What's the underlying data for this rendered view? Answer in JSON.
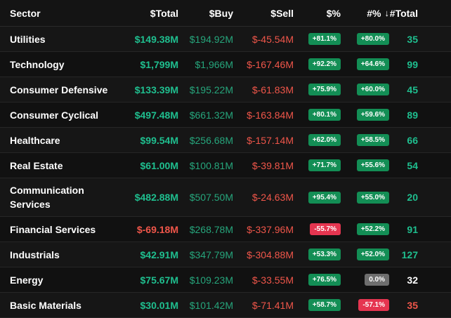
{
  "header": {
    "sector": "Sector",
    "total": "$Total",
    "buy": "$Buy",
    "sell": "$Sell",
    "pct": "$%",
    "npct": "#%",
    "npct_sort_icon": "arrow-down-icon",
    "count": "#Total"
  },
  "colors": {
    "positive_text": "#1fbf8f",
    "negative_text": "#f0564a",
    "positive_badge": "#138e55",
    "negative_badge": "#e53550",
    "neutral_badge": "#6e6e6e"
  },
  "rows": [
    {
      "sector": "Utilities",
      "total": "$149.38M",
      "buy": "$194.92M",
      "sell": "$-45.54M",
      "pct": "+81.1%",
      "npct": "+80.0%",
      "count": "35"
    },
    {
      "sector": "Technology",
      "total": "$1,799M",
      "buy": "$1,966M",
      "sell": "$-167.46M",
      "pct": "+92.2%",
      "npct": "+64.6%",
      "count": "99"
    },
    {
      "sector": "Consumer Defensive",
      "total": "$133.39M",
      "buy": "$195.22M",
      "sell": "$-61.83M",
      "pct": "+75.9%",
      "npct": "+60.0%",
      "count": "45"
    },
    {
      "sector": "Consumer Cyclical",
      "total": "$497.48M",
      "buy": "$661.32M",
      "sell": "$-163.84M",
      "pct": "+80.1%",
      "npct": "+59.6%",
      "count": "89"
    },
    {
      "sector": "Healthcare",
      "total": "$99.54M",
      "buy": "$256.68M",
      "sell": "$-157.14M",
      "pct": "+62.0%",
      "npct": "+58.5%",
      "count": "66"
    },
    {
      "sector": "Real Estate",
      "total": "$61.00M",
      "buy": "$100.81M",
      "sell": "$-39.81M",
      "pct": "+71.7%",
      "npct": "+55.6%",
      "count": "54"
    },
    {
      "sector": "Communication Services",
      "total": "$482.88M",
      "buy": "$507.50M",
      "sell": "$-24.63M",
      "pct": "+95.4%",
      "npct": "+55.0%",
      "count": "20"
    },
    {
      "sector": "Financial Services",
      "total": "$-69.18M",
      "buy": "$268.78M",
      "sell": "$-337.96M",
      "pct": "-55.7%",
      "npct": "+52.2%",
      "count": "91"
    },
    {
      "sector": "Industrials",
      "total": "$42.91M",
      "buy": "$347.79M",
      "sell": "$-304.88M",
      "pct": "+53.3%",
      "npct": "+52.0%",
      "count": "127"
    },
    {
      "sector": "Energy",
      "total": "$75.67M",
      "buy": "$109.23M",
      "sell": "$-33.55M",
      "pct": "+76.5%",
      "npct": "0.0%",
      "count": "32"
    },
    {
      "sector": "Basic Materials",
      "total": "$30.01M",
      "buy": "$101.42M",
      "sell": "$-71.41M",
      "pct": "+58.7%",
      "npct": "-57.1%",
      "count": "35"
    }
  ]
}
